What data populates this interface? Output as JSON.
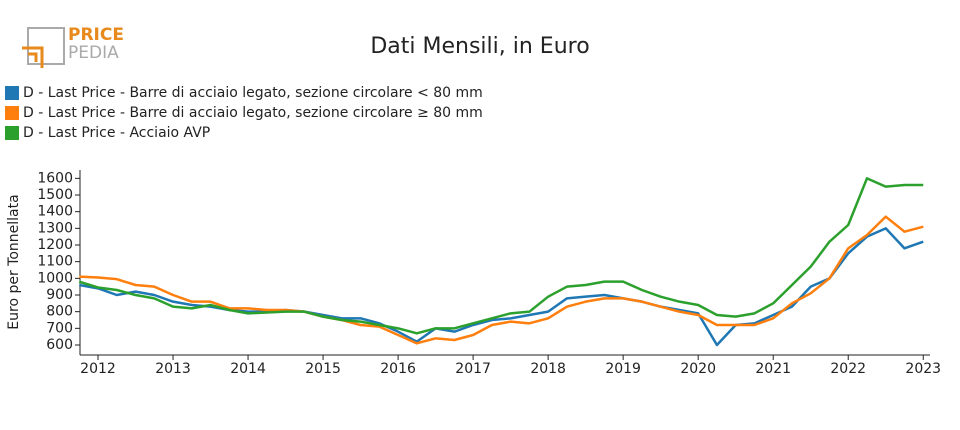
{
  "logo": {
    "line1": "PRICE",
    "line2": "PEDIA"
  },
  "chart_data": {
    "type": "line",
    "title": "Dati Mensili, in Euro",
    "y_label": "Euro per Tonnellata",
    "x": [
      2011.75,
      2012,
      2012.25,
      2012.5,
      2012.75,
      2013,
      2013.25,
      2013.5,
      2013.75,
      2014,
      2014.25,
      2014.5,
      2014.75,
      2015,
      2015.25,
      2015.5,
      2015.75,
      2016,
      2016.25,
      2016.5,
      2016.75,
      2017,
      2017.25,
      2017.5,
      2017.75,
      2018,
      2018.25,
      2018.5,
      2018.75,
      2019,
      2019.25,
      2019.5,
      2019.75,
      2020,
      2020.25,
      2020.5,
      2020.75,
      2021,
      2021.25,
      2021.5,
      2021.75,
      2022,
      2022.25,
      2022.5,
      2022.75,
      2023
    ],
    "series": [
      {
        "name": "D - Last Price - Barre di acciaio legato, sezione circolare < 80 mm",
        "color": "#1f77b4",
        "values": [
          960,
          940,
          900,
          920,
          900,
          860,
          840,
          830,
          810,
          800,
          800,
          810,
          800,
          780,
          760,
          760,
          730,
          680,
          620,
          700,
          680,
          720,
          750,
          760,
          780,
          800,
          880,
          890,
          900,
          880,
          860,
          830,
          810,
          790,
          600,
          720,
          730,
          780,
          830,
          950,
          1000,
          1150,
          1250,
          1300,
          1180,
          1220
        ]
      },
      {
        "name": "D - Last Price - Barre di acciaio legato, sezione circolare ≥ 80 mm",
        "color": "#ff7f0e",
        "values": [
          1010,
          1005,
          995,
          960,
          950,
          900,
          860,
          860,
          820,
          820,
          810,
          810,
          800,
          770,
          750,
          720,
          710,
          660,
          610,
          640,
          630,
          660,
          720,
          740,
          730,
          760,
          830,
          860,
          880,
          880,
          860,
          830,
          800,
          780,
          720,
          720,
          720,
          760,
          850,
          910,
          1000,
          1180,
          1260,
          1370,
          1280,
          1310
        ]
      },
      {
        "name": "D - Last Price - Acciaio AVP",
        "color": "#2ca02c",
        "values": [
          980,
          945,
          930,
          900,
          880,
          830,
          820,
          840,
          810,
          790,
          795,
          800,
          800,
          770,
          750,
          740,
          720,
          700,
          670,
          700,
          700,
          730,
          760,
          790,
          800,
          890,
          950,
          960,
          980,
          980,
          930,
          890,
          860,
          840,
          780,
          770,
          790,
          850,
          960,
          1070,
          1220,
          1320,
          1600,
          1550,
          1560,
          1560
        ]
      }
    ],
    "xlim": [
      2011.76,
      2023.09
    ],
    "ylim": [
      540,
      1650
    ],
    "xticks": [
      2012,
      2013,
      2014,
      2015,
      2016,
      2017,
      2018,
      2019,
      2020,
      2021,
      2022,
      2023
    ],
    "yticks": [
      600,
      700,
      800,
      900,
      1000,
      1100,
      1200,
      1300,
      1400,
      1500,
      1600
    ]
  }
}
